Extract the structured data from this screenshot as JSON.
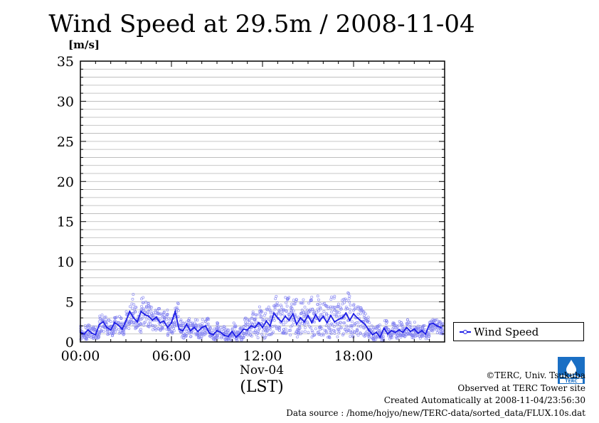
{
  "title": "Wind Speed at 29.5m / 2008-11-04",
  "chart_data": {
    "type": "line",
    "title": "Wind Speed at 29.5m / 2008-11-04",
    "ylabel": "[m/s]",
    "ylim": [
      0,
      35
    ],
    "yticks": [
      "0",
      "5",
      "10",
      "15",
      "20",
      "25",
      "30",
      "35"
    ],
    "xlim": [
      0,
      24
    ],
    "xticks": [
      "00:00",
      "06:00",
      "12:00",
      "18:00"
    ],
    "xlabel_date": "Nov-04",
    "xlabel_tz": "(LST)",
    "grid": true,
    "legend_position": "right-bottom",
    "series": [
      {
        "name": "Wind Speed",
        "color": "#1f1fe6",
        "scatter_color": "#7f7ff0",
        "x": [
          0.0,
          0.25,
          0.5,
          0.75,
          1.0,
          1.25,
          1.5,
          1.75,
          2.0,
          2.25,
          2.5,
          2.75,
          3.0,
          3.25,
          3.5,
          3.75,
          4.0,
          4.25,
          4.5,
          4.75,
          5.0,
          5.25,
          5.5,
          5.75,
          6.0,
          6.25,
          6.5,
          6.75,
          7.0,
          7.25,
          7.5,
          7.75,
          8.0,
          8.25,
          8.5,
          8.75,
          9.0,
          9.25,
          9.5,
          9.75,
          10.0,
          10.25,
          10.5,
          10.75,
          11.0,
          11.25,
          11.5,
          11.75,
          12.0,
          12.25,
          12.5,
          12.75,
          13.0,
          13.25,
          13.5,
          13.75,
          14.0,
          14.25,
          14.5,
          14.75,
          15.0,
          15.25,
          15.5,
          15.75,
          16.0,
          16.25,
          16.5,
          16.75,
          17.0,
          17.25,
          17.5,
          17.75,
          18.0,
          18.25,
          18.5,
          18.75,
          19.0,
          19.25,
          19.5,
          19.75,
          20.0,
          20.25,
          20.5,
          20.75,
          21.0,
          21.25,
          21.5,
          21.75,
          22.0,
          22.25,
          22.5,
          22.75,
          23.0,
          23.25,
          23.5,
          23.75
        ],
        "y": [
          1.2,
          1.0,
          1.5,
          1.1,
          0.9,
          2.2,
          2.5,
          1.8,
          1.5,
          2.4,
          2.1,
          1.6,
          2.6,
          3.8,
          3.0,
          2.5,
          3.8,
          3.4,
          3.2,
          2.7,
          3.1,
          2.4,
          2.6,
          1.8,
          2.4,
          3.8,
          1.6,
          1.4,
          2.2,
          1.4,
          1.8,
          1.3,
          1.8,
          2.0,
          1.1,
          0.9,
          1.4,
          1.2,
          0.8,
          0.7,
          1.3,
          0.6,
          1.0,
          1.6,
          1.5,
          2.0,
          1.8,
          2.4,
          1.8,
          2.6,
          2.0,
          3.6,
          3.0,
          2.5,
          3.2,
          2.7,
          3.5,
          2.2,
          3.0,
          2.5,
          3.3,
          2.4,
          3.4,
          2.6,
          3.2,
          2.4,
          3.3,
          2.5,
          2.8,
          3.0,
          3.6,
          2.7,
          3.5,
          3.0,
          2.6,
          2.2,
          1.5,
          0.9,
          1.2,
          0.6,
          1.7,
          1.0,
          1.4,
          1.2,
          1.5,
          1.2,
          1.8,
          1.3,
          1.6,
          1.1,
          1.4,
          1.0,
          2.2,
          2.3,
          2.0,
          1.8
        ],
        "scatter_min": [
          0.3,
          0.3,
          0.5,
          0.4,
          0.2,
          1.0,
          1.2,
          0.8,
          0.6,
          1.2,
          1.0,
          0.6,
          1.2,
          2.2,
          1.6,
          1.2,
          2.0,
          1.8,
          1.6,
          1.4,
          1.6,
          1.2,
          1.2,
          0.8,
          1.0,
          2.0,
          0.6,
          0.4,
          1.0,
          0.5,
          0.8,
          0.4,
          0.8,
          0.9,
          0.3,
          0.2,
          0.5,
          0.4,
          0.1,
          0.1,
          0.4,
          0.1,
          0.2,
          0.5,
          0.4,
          0.6,
          0.4,
          0.8,
          0.4,
          0.8,
          0.4,
          1.2,
          1.0,
          0.6,
          1.0,
          0.6,
          1.0,
          0.5,
          0.8,
          0.5,
          0.8,
          0.4,
          0.8,
          0.5,
          0.8,
          0.4,
          0.8,
          0.5,
          0.6,
          0.8,
          1.0,
          0.6,
          1.0,
          0.8,
          0.7,
          0.6,
          0.4,
          0.2,
          0.4,
          0.1,
          0.6,
          0.3,
          0.5,
          0.4,
          0.6,
          0.5,
          0.8,
          0.5,
          0.7,
          0.4,
          0.6,
          0.4,
          1.2,
          1.3,
          1.1,
          1.0
        ],
        "scatter_max": [
          2.0,
          2.2,
          2.4,
          2.0,
          1.8,
          3.4,
          3.2,
          2.8,
          2.6,
          3.4,
          3.2,
          2.6,
          3.8,
          6.0,
          4.8,
          3.8,
          5.6,
          5.0,
          4.8,
          4.0,
          4.6,
          3.6,
          4.0,
          3.0,
          3.8,
          5.0,
          3.0,
          2.4,
          3.4,
          2.4,
          2.8,
          2.2,
          2.8,
          3.0,
          2.0,
          1.8,
          2.4,
          2.2,
          1.6,
          1.5,
          2.4,
          1.4,
          2.0,
          3.0,
          2.8,
          3.8,
          3.6,
          4.6,
          3.6,
          4.8,
          4.0,
          6.0,
          5.2,
          4.6,
          5.6,
          4.8,
          5.8,
          4.2,
          5.4,
          4.6,
          5.6,
          4.4,
          5.8,
          4.8,
          5.6,
          4.4,
          5.8,
          4.6,
          5.0,
          5.4,
          6.2,
          4.8,
          5.6,
          4.8,
          4.2,
          3.6,
          2.6,
          1.8,
          2.2,
          1.4,
          2.8,
          1.8,
          2.4,
          2.2,
          2.6,
          2.0,
          2.8,
          2.2,
          2.6,
          2.0,
          2.2,
          1.8,
          2.8,
          2.8,
          2.6,
          2.4
        ]
      }
    ]
  },
  "legend": {
    "label": "Wind Speed"
  },
  "credits": [
    "©TERC, Univ. Tsukuba",
    "Observed at TERC Tower site",
    "Created Automatically at 2008-11-04/23:56:30",
    "Data source : /home/hojyo/new/TERC-data/sorted_data/FLUX.10s.dat"
  ],
  "logo": {
    "text": "TERC",
    "icon": "terc-logo-icon"
  }
}
